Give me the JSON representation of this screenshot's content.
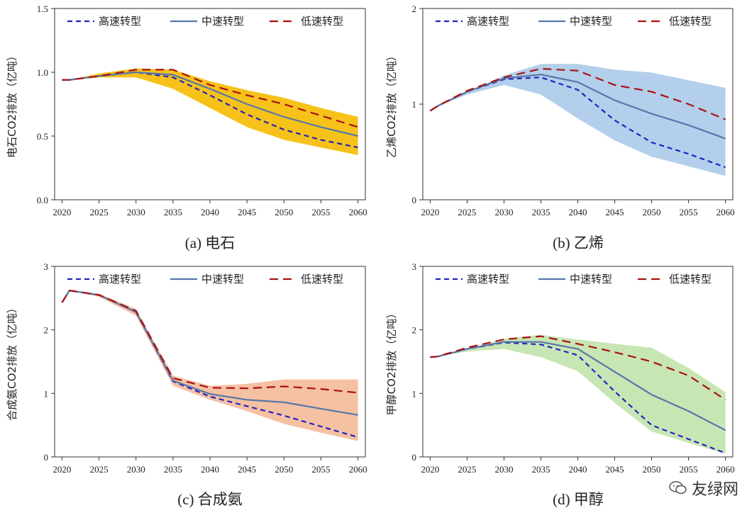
{
  "watermark": {
    "text": "友绿网",
    "icon": "chat-bubble-icon"
  },
  "style": {
    "fast_color": "#2222bb",
    "mid_color": "#5577aa",
    "slow_color": "#aa1111"
  },
  "chart_data": [
    {
      "type": "line",
      "caption": "(a) 电石",
      "ylabel": "电石CO2排放（亿吨）",
      "ylim": [
        0,
        1.5
      ],
      "yticks": [
        "0.0",
        "0.5",
        "1.0",
        "1.5"
      ],
      "x": [
        2020,
        2021,
        2025,
        2030,
        2035,
        2040,
        2045,
        2050,
        2055,
        2060
      ],
      "xticks": [
        2020,
        2025,
        2030,
        2035,
        2040,
        2045,
        2050,
        2055,
        2060
      ],
      "band_color": "#f6c21a",
      "band_upper": [
        0.94,
        0.94,
        0.99,
        1.03,
        1.02,
        0.93,
        0.86,
        0.8,
        0.72,
        0.65
      ],
      "band_lower": [
        0.94,
        0.94,
        0.96,
        0.96,
        0.87,
        0.72,
        0.57,
        0.47,
        0.41,
        0.35
      ],
      "legend": [
        "高速转型",
        "中速转型",
        "低速转型"
      ],
      "series": [
        {
          "name": "高速转型",
          "values": [
            0.94,
            0.94,
            0.97,
            1.0,
            0.96,
            0.82,
            0.67,
            0.55,
            0.47,
            0.41
          ]
        },
        {
          "name": "中速转型",
          "values": [
            0.94,
            0.94,
            0.97,
            1.0,
            0.98,
            0.87,
            0.75,
            0.65,
            0.57,
            0.5
          ]
        },
        {
          "name": "低速转型",
          "values": [
            0.94,
            0.94,
            0.97,
            1.02,
            1.02,
            0.9,
            0.82,
            0.75,
            0.66,
            0.57
          ]
        }
      ]
    },
    {
      "type": "line",
      "caption": "(b) 乙烯",
      "ylabel": "乙烯CO2排放（亿吨）",
      "ylim": [
        0,
        2
      ],
      "yticks": [
        "0",
        "1",
        "2"
      ],
      "x": [
        2020,
        2021,
        2025,
        2030,
        2035,
        2040,
        2045,
        2050,
        2055,
        2060
      ],
      "xticks": [
        2020,
        2025,
        2030,
        2035,
        2040,
        2045,
        2050,
        2055,
        2060
      ],
      "band_color": "#b3cfeb",
      "band_upper": [
        0.93,
        0.98,
        1.12,
        1.3,
        1.42,
        1.42,
        1.36,
        1.33,
        1.25,
        1.17
      ],
      "band_lower": [
        0.93,
        0.98,
        1.1,
        1.2,
        1.1,
        0.85,
        0.62,
        0.45,
        0.35,
        0.25
      ],
      "legend": [
        "高速转型",
        "中速转型",
        "低速转型"
      ],
      "series": [
        {
          "name": "高速转型",
          "values": [
            0.93,
            0.98,
            1.13,
            1.26,
            1.28,
            1.15,
            0.83,
            0.6,
            0.48,
            0.34
          ]
        },
        {
          "name": "中速转型",
          "values": [
            0.93,
            0.98,
            1.13,
            1.27,
            1.31,
            1.23,
            1.04,
            0.9,
            0.78,
            0.64
          ]
        },
        {
          "name": "低速转型",
          "values": [
            0.93,
            0.98,
            1.14,
            1.28,
            1.37,
            1.35,
            1.2,
            1.13,
            1.0,
            0.84
          ]
        }
      ]
    },
    {
      "type": "line",
      "caption": "(c) 合成氨",
      "ylabel": "合成氨CO2排放（亿吨）",
      "ylim": [
        0,
        3
      ],
      "yticks": [
        "0",
        "1",
        "2",
        "3"
      ],
      "x": [
        2020,
        2021,
        2025,
        2030,
        2035,
        2040,
        2045,
        2050,
        2055,
        2060
      ],
      "xticks": [
        2020,
        2025,
        2030,
        2035,
        2040,
        2045,
        2050,
        2055,
        2060
      ],
      "band_color": "#f5c1a3",
      "band_upper": [
        2.43,
        2.62,
        2.57,
        2.33,
        1.28,
        1.12,
        1.15,
        1.22,
        1.22,
        1.22
      ],
      "band_lower": [
        2.43,
        2.62,
        2.52,
        2.22,
        1.12,
        0.9,
        0.72,
        0.52,
        0.38,
        0.25
      ],
      "legend": [
        "高速转型",
        "中速转型",
        "低速转型"
      ],
      "series": [
        {
          "name": "高速转型",
          "values": [
            2.43,
            2.62,
            2.55,
            2.28,
            1.19,
            0.95,
            0.8,
            0.65,
            0.48,
            0.31
          ]
        },
        {
          "name": "中速转型",
          "values": [
            2.43,
            2.62,
            2.55,
            2.28,
            1.2,
            0.99,
            0.9,
            0.86,
            0.76,
            0.66
          ]
        },
        {
          "name": "低速转型",
          "values": [
            2.43,
            2.62,
            2.55,
            2.3,
            1.24,
            1.09,
            1.08,
            1.11,
            1.07,
            1.01
          ]
        }
      ]
    },
    {
      "type": "line",
      "caption": "(d) 甲醇",
      "ylabel": "甲醇CO2排放（亿吨）",
      "ylim": [
        0,
        3
      ],
      "yticks": [
        "0",
        "1",
        "2",
        "3"
      ],
      "x": [
        2020,
        2021,
        2025,
        2030,
        2035,
        2040,
        2045,
        2050,
        2055,
        2060
      ],
      "xticks": [
        2020,
        2025,
        2030,
        2035,
        2040,
        2045,
        2050,
        2055,
        2060
      ],
      "band_color": "#c8e6b4",
      "band_upper": [
        1.57,
        1.58,
        1.7,
        1.86,
        1.92,
        1.85,
        1.78,
        1.72,
        1.4,
        1.02
      ],
      "band_lower": [
        1.57,
        1.58,
        1.66,
        1.7,
        1.57,
        1.35,
        0.85,
        0.4,
        0.22,
        0.05
      ],
      "legend": [
        "高速转型",
        "中速转型",
        "低速转型"
      ],
      "series": [
        {
          "name": "高速转型",
          "values": [
            1.57,
            1.58,
            1.7,
            1.8,
            1.77,
            1.6,
            1.03,
            0.5,
            0.28,
            0.06
          ]
        },
        {
          "name": "中速转型",
          "values": [
            1.57,
            1.58,
            1.7,
            1.81,
            1.81,
            1.7,
            1.34,
            0.98,
            0.72,
            0.42
          ]
        },
        {
          "name": "低速转型",
          "values": [
            1.57,
            1.58,
            1.72,
            1.85,
            1.9,
            1.78,
            1.65,
            1.5,
            1.28,
            0.9
          ]
        }
      ]
    }
  ]
}
